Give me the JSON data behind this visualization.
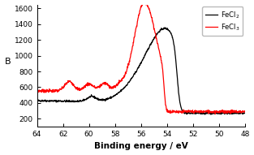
{
  "title": "",
  "xlabel": "Binding energy / eV",
  "ylabel": "B",
  "xlim": [
    64,
    48
  ],
  "ylim": [
    100,
    1650
  ],
  "xticks": [
    64,
    62,
    60,
    58,
    56,
    54,
    52,
    50,
    48
  ],
  "yticks": [
    200,
    400,
    600,
    800,
    1000,
    1200,
    1400,
    1600
  ],
  "legend_labels": [
    "FeCl$_2$",
    "FeCl$_3$"
  ],
  "legend_colors": [
    "black",
    "red"
  ],
  "figsize": [
    3.13,
    1.91
  ],
  "dpi": 100
}
